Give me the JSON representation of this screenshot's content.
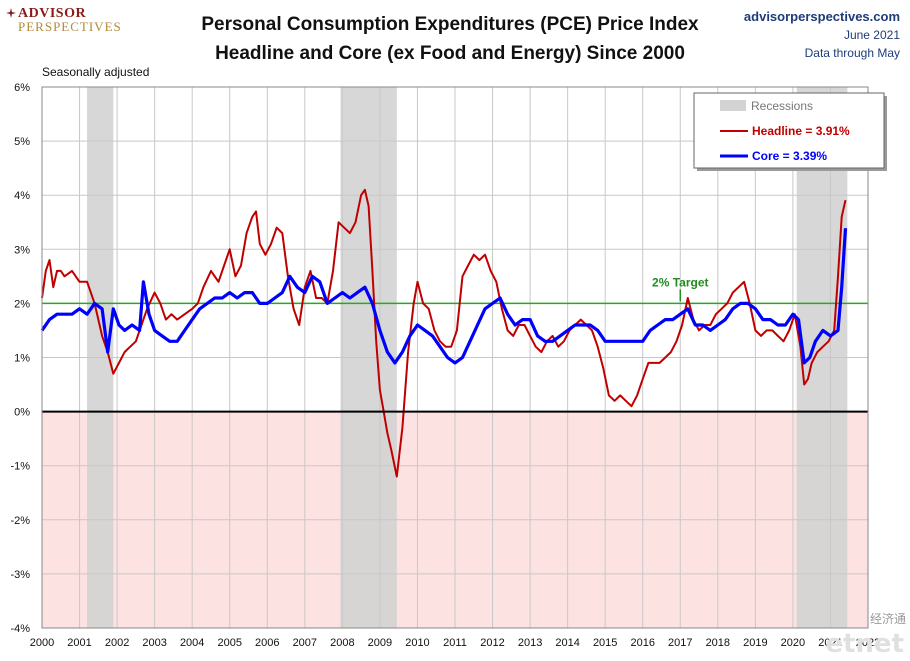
{
  "header": {
    "logo_line1": "ADVISOR",
    "logo_line2": "PERSPECTIVES",
    "title_line1": "Personal Consumption Expenditures (PCE) Price Index",
    "title_line2": "Headline and Core (ex Food and Energy) Since 2000",
    "site": "advisorperspectives.com",
    "date": "June 2021",
    "data_through": "Data through May",
    "note": "Seasonally adjusted"
  },
  "watermark": {
    "text": "etnet",
    "cn": "经济通"
  },
  "colors": {
    "headline": "#c00000",
    "core": "#0000ff",
    "target": "#22aa22",
    "recession": "#d3d3d3",
    "negative_zone": "#fde2e2",
    "annotation": "#228b22"
  },
  "chart_data": {
    "type": "line",
    "title": "Personal Consumption Expenditures (PCE) Price Index",
    "subtitle": "Headline and Core (ex Food and Energy) Since 2000",
    "xlabel": "",
    "ylabel": "",
    "xlim": [
      2000,
      2022
    ],
    "ylim": [
      -4,
      6
    ],
    "yticks": [
      6,
      5,
      4,
      3,
      2,
      1,
      0,
      -1,
      -2,
      -3,
      -4
    ],
    "ytick_labels": [
      "6%",
      "5%",
      "4%",
      "3%",
      "2%",
      "1%",
      "0%",
      "-1%",
      "-2%",
      "-3%",
      "-4%"
    ],
    "xticks": [
      "2000",
      "2001",
      "2002",
      "2003",
      "2004",
      "2005",
      "2006",
      "2007",
      "2008",
      "2009",
      "2010",
      "2011",
      "2012",
      "2013",
      "2014",
      "2015",
      "2016",
      "2017",
      "2018",
      "2019",
      "2020",
      "2021",
      "2022"
    ],
    "grid": true,
    "legend_position": "top-right",
    "legend": [
      {
        "label": "Recessions",
        "kind": "band"
      },
      {
        "label": "Headline = 3.91%",
        "kind": "line",
        "series": "Headline"
      },
      {
        "label": "Core = 3.39%",
        "kind": "line",
        "series": "Core"
      }
    ],
    "recessions": [
      [
        2001.2,
        2001.9
      ],
      [
        2007.95,
        2009.45
      ],
      [
        2020.1,
        2021.45
      ]
    ],
    "reference_line": {
      "y": 2,
      "label": "2% Target",
      "label_x": 2017.0
    },
    "series": [
      {
        "name": "Headline",
        "x": [
          2000.0,
          2000.1,
          2000.2,
          2000.3,
          2000.4,
          2000.5,
          2000.6,
          2000.8,
          2001.0,
          2001.2,
          2001.4,
          2001.6,
          2001.75,
          2001.9,
          2002.05,
          2002.2,
          2002.35,
          2002.5,
          2002.65,
          2002.8,
          2003.0,
          2003.15,
          2003.3,
          2003.45,
          2003.6,
          2003.8,
          2004.0,
          2004.15,
          2004.3,
          2004.5,
          2004.7,
          2004.85,
          2005.0,
          2005.15,
          2005.3,
          2005.45,
          2005.6,
          2005.7,
          2005.8,
          2005.95,
          2006.1,
          2006.25,
          2006.4,
          2006.55,
          2006.7,
          2006.85,
          2007.0,
          2007.15,
          2007.3,
          2007.45,
          2007.6,
          2007.75,
          2007.9,
          2008.05,
          2008.2,
          2008.35,
          2008.5,
          2008.6,
          2008.7,
          2008.8,
          2008.9,
          2009.0,
          2009.1,
          2009.2,
          2009.3,
          2009.45,
          2009.6,
          2009.75,
          2009.9,
          2010.0,
          2010.15,
          2010.3,
          2010.45,
          2010.6,
          2010.75,
          2010.9,
          2011.05,
          2011.2,
          2011.35,
          2011.5,
          2011.65,
          2011.8,
          2011.95,
          2012.1,
          2012.25,
          2012.4,
          2012.55,
          2012.7,
          2012.85,
          2013.0,
          2013.15,
          2013.3,
          2013.45,
          2013.6,
          2013.75,
          2013.9,
          2014.05,
          2014.2,
          2014.35,
          2014.5,
          2014.65,
          2014.8,
          2014.95,
          2015.1,
          2015.25,
          2015.4,
          2015.55,
          2015.7,
          2015.85,
          2016.0,
          2016.15,
          2016.3,
          2016.45,
          2016.6,
          2016.75,
          2016.9,
          2017.05,
          2017.2,
          2017.35,
          2017.5,
          2017.65,
          2017.8,
          2017.95,
          2018.1,
          2018.25,
          2018.4,
          2018.55,
          2018.7,
          2018.85,
          2019.0,
          2019.15,
          2019.3,
          2019.45,
          2019.6,
          2019.75,
          2019.9,
          2020.05,
          2020.2,
          2020.3,
          2020.4,
          2020.5,
          2020.65,
          2020.8,
          2020.95,
          2021.1,
          2021.2,
          2021.3,
          2021.4
        ],
        "values": [
          2.1,
          2.6,
          2.8,
          2.3,
          2.6,
          2.6,
          2.5,
          2.6,
          2.4,
          2.4,
          2.0,
          1.4,
          1.1,
          0.7,
          0.9,
          1.1,
          1.2,
          1.3,
          1.6,
          1.9,
          2.2,
          2.0,
          1.7,
          1.8,
          1.7,
          1.8,
          1.9,
          2.0,
          2.3,
          2.6,
          2.4,
          2.7,
          3.0,
          2.5,
          2.7,
          3.3,
          3.6,
          3.7,
          3.1,
          2.9,
          3.1,
          3.4,
          3.3,
          2.5,
          1.9,
          1.6,
          2.3,
          2.6,
          2.1,
          2.1,
          2.0,
          2.6,
          3.5,
          3.4,
          3.3,
          3.5,
          4.0,
          4.1,
          3.8,
          2.6,
          1.3,
          0.4,
          0.0,
          -0.4,
          -0.7,
          -1.2,
          -0.3,
          1.1,
          2.0,
          2.4,
          2.0,
          1.9,
          1.5,
          1.3,
          1.2,
          1.2,
          1.5,
          2.5,
          2.7,
          2.9,
          2.8,
          2.9,
          2.6,
          2.4,
          1.9,
          1.5,
          1.4,
          1.6,
          1.6,
          1.4,
          1.2,
          1.1,
          1.3,
          1.4,
          1.2,
          1.3,
          1.5,
          1.6,
          1.7,
          1.6,
          1.5,
          1.2,
          0.8,
          0.3,
          0.2,
          0.3,
          0.2,
          0.1,
          0.3,
          0.6,
          0.9,
          0.9,
          0.9,
          1.0,
          1.1,
          1.3,
          1.6,
          2.1,
          1.7,
          1.5,
          1.6,
          1.6,
          1.8,
          1.9,
          2.0,
          2.2,
          2.3,
          2.4,
          2.0,
          1.5,
          1.4,
          1.5,
          1.5,
          1.4,
          1.3,
          1.5,
          1.8,
          1.2,
          0.5,
          0.6,
          0.9,
          1.1,
          1.2,
          1.3,
          1.5,
          2.5,
          3.6,
          3.91
        ]
      },
      {
        "name": "Core",
        "x": [
          2000.0,
          2000.2,
          2000.4,
          2000.6,
          2000.8,
          2001.0,
          2001.2,
          2001.4,
          2001.6,
          2001.75,
          2001.9,
          2002.05,
          2002.2,
          2002.4,
          2002.6,
          2002.7,
          2002.85,
          2003.0,
          2003.2,
          2003.4,
          2003.6,
          2003.8,
          2004.0,
          2004.2,
          2004.4,
          2004.6,
          2004.8,
          2005.0,
          2005.2,
          2005.4,
          2005.6,
          2005.8,
          2006.0,
          2006.2,
          2006.4,
          2006.6,
          2006.8,
          2007.0,
          2007.2,
          2007.4,
          2007.6,
          2007.8,
          2008.0,
          2008.2,
          2008.4,
          2008.6,
          2008.8,
          2009.0,
          2009.2,
          2009.4,
          2009.6,
          2009.8,
          2010.0,
          2010.2,
          2010.4,
          2010.6,
          2010.8,
          2011.0,
          2011.2,
          2011.4,
          2011.6,
          2011.8,
          2012.0,
          2012.2,
          2012.4,
          2012.6,
          2012.8,
          2013.0,
          2013.2,
          2013.4,
          2013.6,
          2013.8,
          2014.0,
          2014.2,
          2014.4,
          2014.6,
          2014.8,
          2015.0,
          2015.2,
          2015.4,
          2015.6,
          2015.8,
          2016.0,
          2016.2,
          2016.4,
          2016.6,
          2016.8,
          2017.0,
          2017.2,
          2017.4,
          2017.6,
          2017.8,
          2018.0,
          2018.2,
          2018.4,
          2018.6,
          2018.8,
          2019.0,
          2019.2,
          2019.4,
          2019.6,
          2019.8,
          2020.0,
          2020.15,
          2020.3,
          2020.45,
          2020.6,
          2020.8,
          2021.0,
          2021.2,
          2021.3,
          2021.4
        ],
        "values": [
          1.5,
          1.7,
          1.8,
          1.8,
          1.8,
          1.9,
          1.8,
          2.0,
          1.9,
          1.1,
          1.9,
          1.6,
          1.5,
          1.6,
          1.5,
          2.4,
          1.8,
          1.5,
          1.4,
          1.3,
          1.3,
          1.5,
          1.7,
          1.9,
          2.0,
          2.1,
          2.1,
          2.2,
          2.1,
          2.2,
          2.2,
          2.0,
          2.0,
          2.1,
          2.2,
          2.5,
          2.3,
          2.2,
          2.5,
          2.4,
          2.0,
          2.1,
          2.2,
          2.1,
          2.2,
          2.3,
          2.0,
          1.5,
          1.1,
          0.9,
          1.1,
          1.4,
          1.6,
          1.5,
          1.4,
          1.2,
          1.0,
          0.9,
          1.0,
          1.3,
          1.6,
          1.9,
          2.0,
          2.1,
          1.8,
          1.6,
          1.7,
          1.7,
          1.4,
          1.3,
          1.3,
          1.4,
          1.5,
          1.6,
          1.6,
          1.6,
          1.5,
          1.3,
          1.3,
          1.3,
          1.3,
          1.3,
          1.3,
          1.5,
          1.6,
          1.7,
          1.7,
          1.8,
          1.9,
          1.6,
          1.6,
          1.5,
          1.6,
          1.7,
          1.9,
          2.0,
          2.0,
          1.9,
          1.7,
          1.7,
          1.6,
          1.6,
          1.8,
          1.7,
          0.9,
          1.0,
          1.3,
          1.5,
          1.4,
          1.5,
          2.3,
          3.39
        ]
      }
    ]
  }
}
